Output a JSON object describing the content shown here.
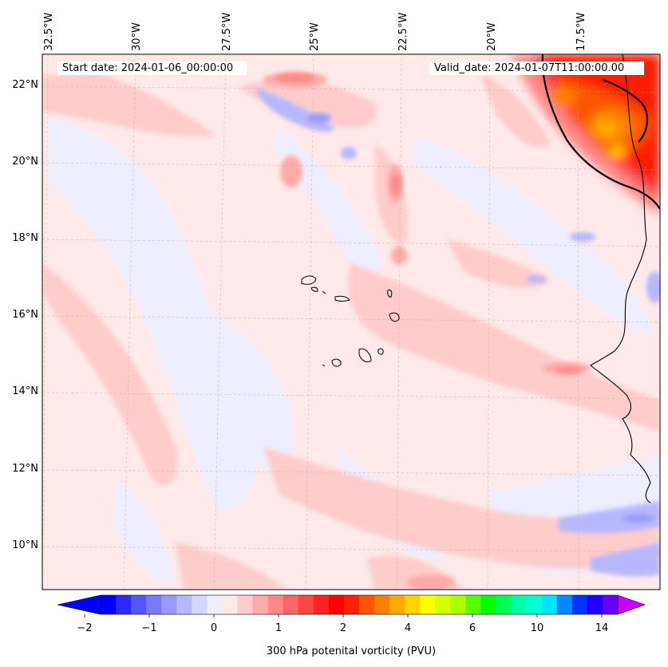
{
  "map": {
    "start_date": "Start date: 2024-01-06_00:00:00",
    "valid_date": "Valid_date: 2024-01-07T11:00:00.00",
    "lon_labels": [
      "32.5°W",
      "30°W",
      "27.5°W",
      "25°W",
      "22.5°W",
      "20°W",
      "17.5°W"
    ],
    "lat_labels": [
      "22°N",
      "20°N",
      "18°N",
      "16°N",
      "14°N",
      "12°N",
      "10°N"
    ]
  },
  "colorbar": {
    "label": "300 hPa potenital vorticity (PVU)",
    "tick_labels": [
      "−2",
      "−1",
      "0",
      "1",
      "2",
      "4",
      "6",
      "10",
      "14"
    ],
    "colors": [
      "#0000ff",
      "#2a2aff",
      "#5555ff",
      "#7777ff",
      "#9999ff",
      "#b7b7ff",
      "#d6d6ff",
      "#eeeeff",
      "#ffe9e9",
      "#ffcccc",
      "#ffaaaa",
      "#ff8888",
      "#ff6666",
      "#ff4444",
      "#ff2222",
      "#ff0000",
      "#ff2200",
      "#ff5500",
      "#ff7f00",
      "#ffaa00",
      "#ffd400",
      "#ffff00",
      "#d4ff00",
      "#aaff00",
      "#55ff00",
      "#00ff00",
      "#00ff55",
      "#00ffaa",
      "#00ffd4",
      "#00e5ff",
      "#0088ff",
      "#0033ff",
      "#2200ff",
      "#6600ff"
    ],
    "under_color": "#0000ff",
    "over_color": "#cc00ff"
  }
}
